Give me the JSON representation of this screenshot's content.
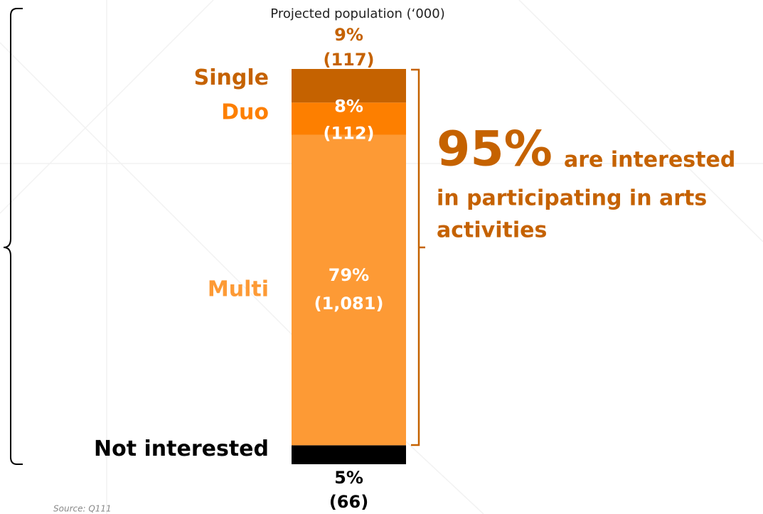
{
  "chart_data": {
    "type": "stacked_bar",
    "title": "Projected population (‘000)",
    "categories": [
      "Not interested",
      "Multi",
      "Duo",
      "Single"
    ],
    "values": [
      66,
      1081,
      112,
      117
    ],
    "value_labels": [
      "(66)",
      "(1,081)",
      "(112)",
      "(117)"
    ],
    "shares": [
      5,
      79,
      8,
      9
    ],
    "share_labels": [
      "5%",
      "79%",
      "8%",
      "9%"
    ],
    "colors": [
      "#000000",
      "#fd9a35",
      "#fd7f00",
      "#c56200"
    ],
    "callout": {
      "figure": "95%",
      "lines": [
        "are interested",
        "in participating in arts",
        "activities"
      ]
    },
    "source": "Source: Q111"
  }
}
